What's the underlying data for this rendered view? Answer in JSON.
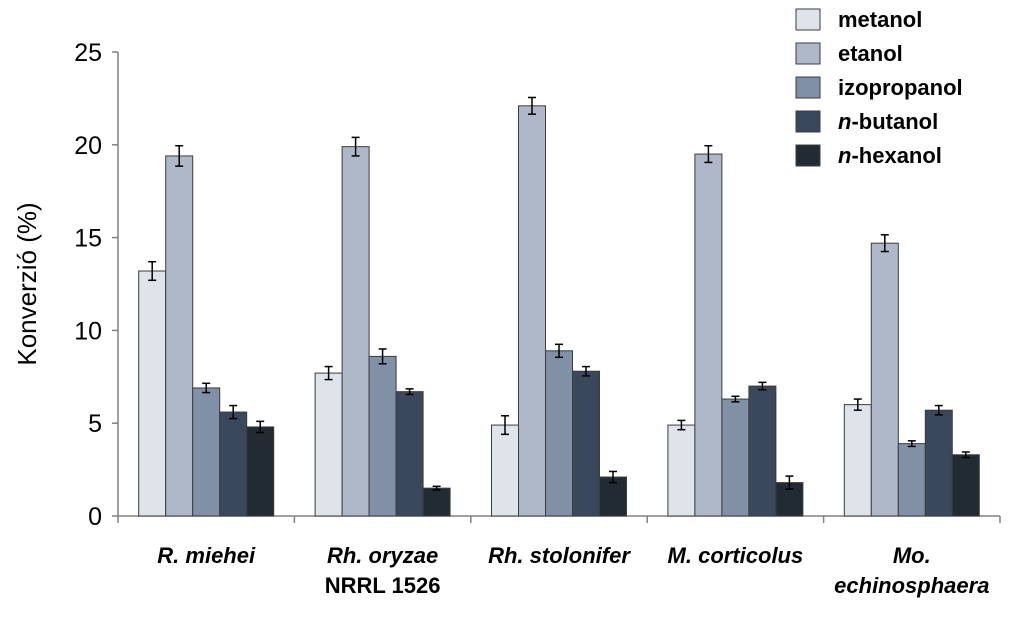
{
  "chart_data": {
    "type": "bar",
    "title": "",
    "xlabel": "",
    "ylabel": "Konverzió (%)",
    "ylim": [
      0,
      25
    ],
    "yticks": [
      "0",
      "5",
      "10",
      "15",
      "20",
      "25"
    ],
    "grid": false,
    "legend_position": "top-right",
    "categories": [
      {
        "lines": [
          "R. miehei"
        ]
      },
      {
        "lines": [
          "Rh. oryzae",
          "NRRL 1526"
        ]
      },
      {
        "lines": [
          "Rh. stolonifer"
        ]
      },
      {
        "lines": [
          "M. corticolus"
        ]
      },
      {
        "lines": [
          "Mo.",
          "echinosphaera"
        ]
      }
    ],
    "series": [
      {
        "name": "metanol",
        "italic_prefix": "",
        "color": "#dfe3ea",
        "values": [
          13.2,
          7.7,
          4.9,
          4.9,
          6.0
        ],
        "errors": [
          0.5,
          0.35,
          0.5,
          0.25,
          0.3
        ]
      },
      {
        "name": "etanol",
        "italic_prefix": "",
        "color": "#aeb8c8",
        "values": [
          19.4,
          19.9,
          22.1,
          19.5,
          14.7
        ],
        "errors": [
          0.55,
          0.5,
          0.45,
          0.45,
          0.45
        ]
      },
      {
        "name": "izopropanol",
        "italic_prefix": "",
        "color": "#8090a6",
        "values": [
          6.9,
          8.6,
          8.9,
          6.3,
          3.9
        ],
        "errors": [
          0.25,
          0.4,
          0.35,
          0.15,
          0.15
        ]
      },
      {
        "name": "-butanol",
        "italic_prefix": "n",
        "color": "#3a485c",
        "values": [
          5.6,
          6.7,
          7.8,
          7.0,
          5.7
        ],
        "errors": [
          0.35,
          0.15,
          0.25,
          0.2,
          0.25
        ]
      },
      {
        "name": "-hexanol",
        "italic_prefix": "n",
        "color": "#222a34",
        "values": [
          4.8,
          1.5,
          2.1,
          1.8,
          3.3
        ],
        "errors": [
          0.3,
          0.1,
          0.3,
          0.35,
          0.15
        ]
      }
    ]
  }
}
